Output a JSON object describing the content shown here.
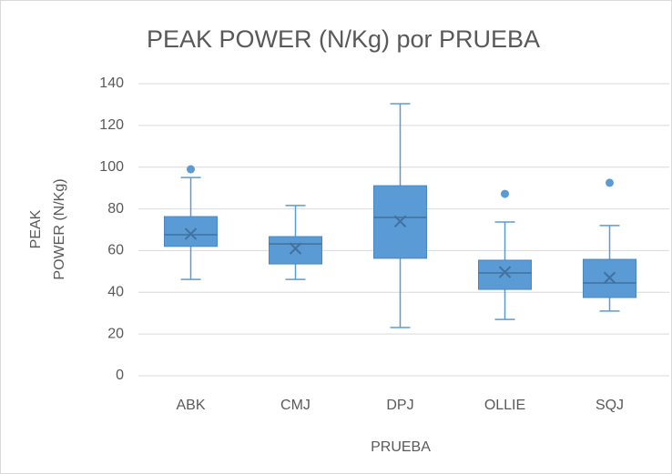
{
  "chart_data": {
    "type": "box",
    "title": "PEAK POWER (N/Kg) por PRUEBA",
    "ylabel": [
      "PEAK",
      "POWER (N/Kg)"
    ],
    "xlabel": "PRUEBA",
    "categories": [
      "ABK",
      "CMJ",
      "DPJ",
      "OLLIE",
      "SQJ"
    ],
    "color": "#5b9bd5",
    "ylim": [
      0,
      140
    ],
    "yticks": [
      0,
      20,
      40,
      60,
      80,
      100,
      120,
      140
    ],
    "grid": true,
    "boxes": [
      {
        "min": 46.2,
        "q1": 62,
        "median": 67.6,
        "q3": 76.3,
        "max": 95,
        "mean": 68,
        "outliers": [
          99
        ]
      },
      {
        "min": 46.2,
        "q1": 53.6,
        "median": 63.2,
        "q3": 66.7,
        "max": 81.6,
        "mean": 61,
        "outliers": []
      },
      {
        "min": 23.1,
        "q1": 56.3,
        "median": 75.9,
        "q3": 91.1,
        "max": 130.4,
        "mean": 74,
        "outliers": []
      },
      {
        "min": 27,
        "q1": 41.4,
        "median": 49.3,
        "q3": 55.4,
        "max": 73.7,
        "mean": 49.7,
        "outliers": [
          87.2
        ]
      },
      {
        "min": 31,
        "q1": 37.5,
        "median": 44.5,
        "q3": 55.8,
        "max": 72,
        "mean": 47,
        "outliers": [
          92.5
        ]
      }
    ]
  }
}
